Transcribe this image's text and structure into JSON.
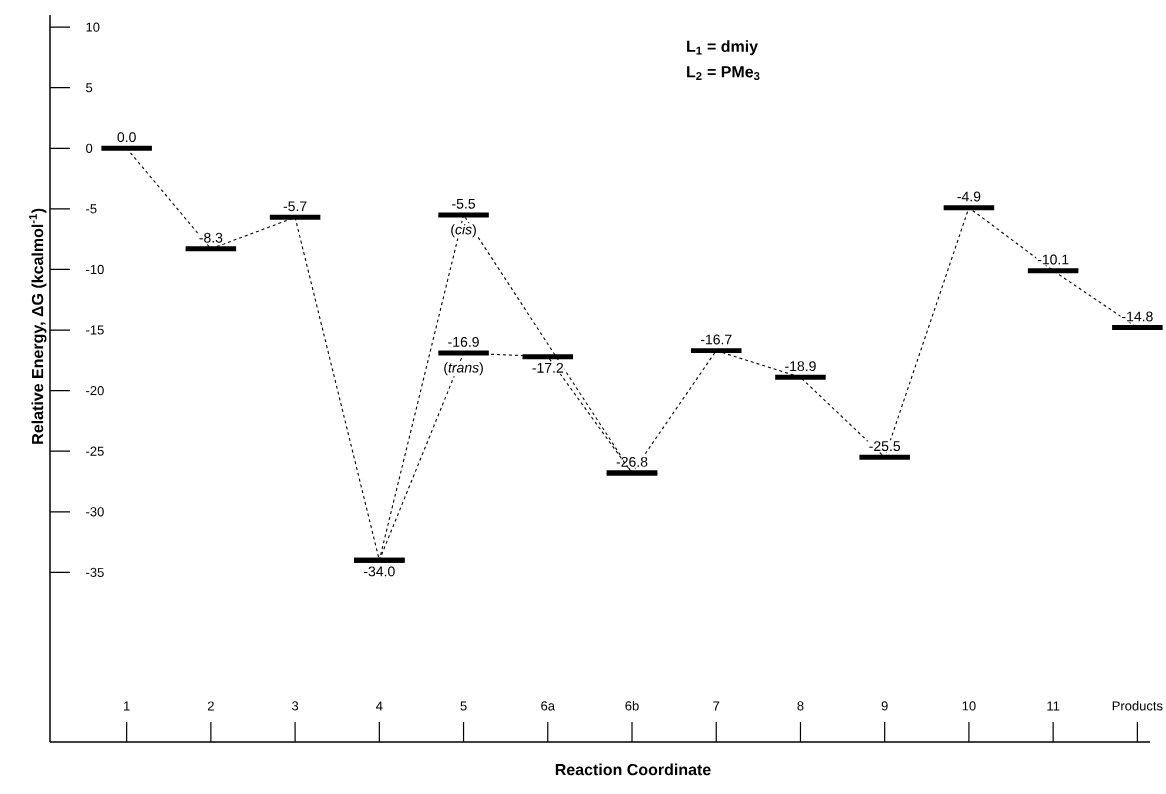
{
  "chart_data": {
    "type": "line",
    "xlabel": "Reaction Coordinate",
    "ylabel": "Relative Energy, ΔG (kcalmol$^{-1}$)",
    "categories": [
      "1",
      "2",
      "3",
      "4",
      "5",
      "6a",
      "6b",
      "7",
      "8",
      "9",
      "10",
      "11",
      "Products"
    ],
    "series": [
      {
        "color": "#000000",
        "line_style": "dashed",
        "values": [
          0.0,
          -8.3,
          -5.7,
          -34.0,
          -5.5,
          null,
          -26.8,
          -16.7,
          -18.9,
          -25.5,
          -4.9,
          -10.1,
          -14.8
        ],
        "value_labels": [
          "0.0",
          "-8.3",
          "-5.7",
          "-34.0",
          "-5.5",
          null,
          "-26.8",
          "-16.7",
          "-18.9",
          "-25.5",
          "-4.9",
          "-10.1",
          "-14.8"
        ]
      },
      {
        "color": "#000000",
        "line_style": "dashed",
        "values": [
          null,
          null,
          null,
          -34.0,
          -16.9,
          -17.2,
          -26.8,
          null,
          null,
          null,
          null,
          null,
          null
        ],
        "value_labels": [
          null,
          null,
          null,
          null,
          "-16.9",
          "-17.2",
          null,
          null,
          null,
          null,
          null,
          null,
          null
        ]
      }
    ],
    "ylim": [
      -49,
      11
    ],
    "yticks": [
      10,
      5,
      0,
      -5,
      -10,
      -15,
      -20,
      -25,
      -30,
      -35
    ],
    "annotations": [
      "L$_{1}$ = dmiy",
      "L$_{2}$ = PMe$_{3}$",
      {
        "text": "(*cis*)",
        "x": "5",
        "y": -5.5
      },
      {
        "text": "(*trans*)",
        "x": "5",
        "y": -16.9
      }
    ],
    "grid": false
  }
}
